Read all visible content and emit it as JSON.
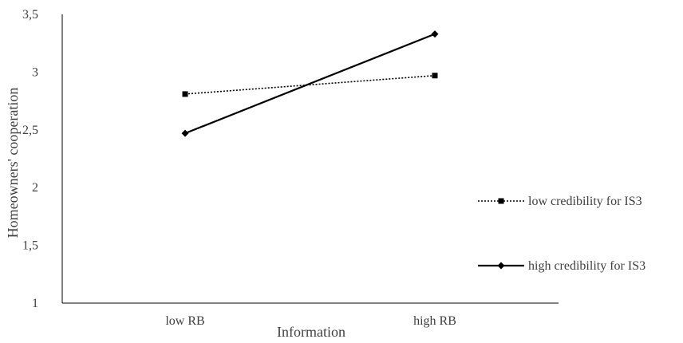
{
  "chart_data": {
    "type": "line",
    "categories": [
      "low RB",
      "high RB"
    ],
    "xlabel": "Information",
    "ylabel": "Homeowners' cooperation",
    "ylim": [
      1,
      3.5
    ],
    "yticks": [
      "1",
      "1,5",
      "2",
      "2,5",
      "3",
      "3,5"
    ],
    "grid": false,
    "legend_position": "right",
    "series": [
      {
        "name": "low credibility for IS3",
        "values": [
          2.81,
          2.97
        ],
        "line_style": "dotted",
        "marker": "square",
        "color": "#000000"
      },
      {
        "name": "high credibility for IS3",
        "values": [
          2.47,
          3.33
        ],
        "line_style": "solid",
        "marker": "diamond",
        "color": "#000000"
      }
    ]
  }
}
